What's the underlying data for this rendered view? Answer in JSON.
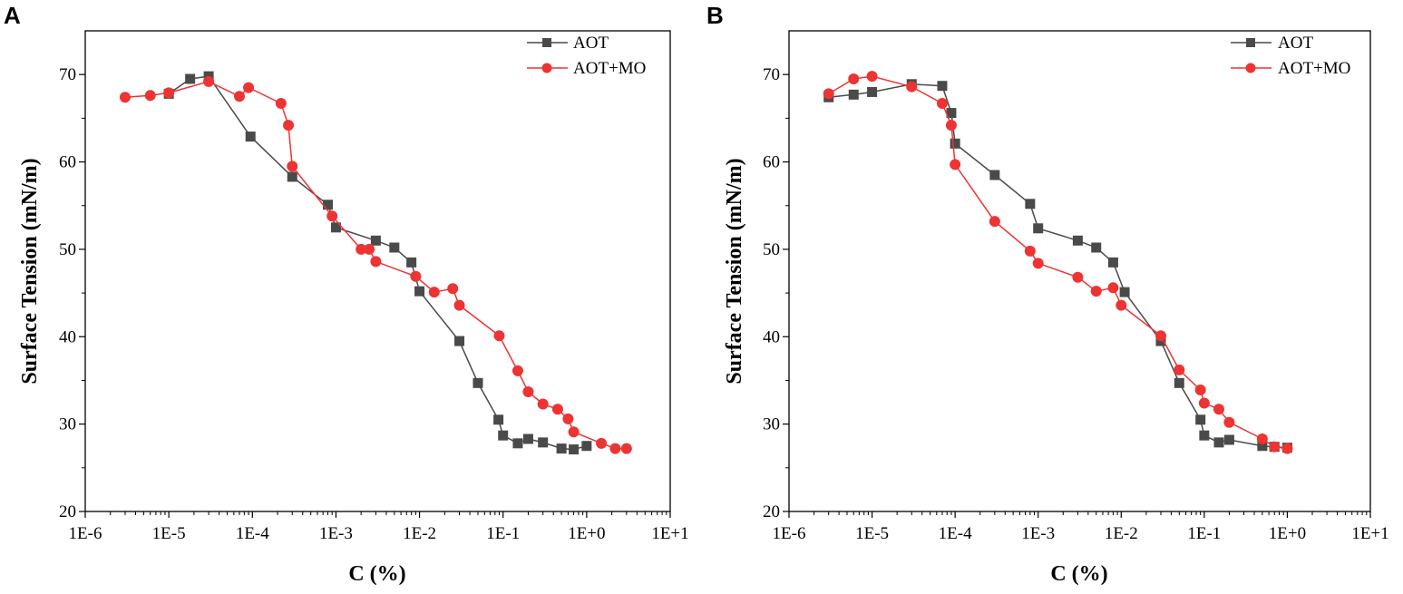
{
  "colors": {
    "aot": "#4a4a4a",
    "aot_mo": "#ee3333",
    "axis": "#000000"
  },
  "chart_data": [
    {
      "panel": "A",
      "type": "line",
      "xscale": "log",
      "xlabel": "C (%)",
      "ylabel": "Surface Tension (mN/m)",
      "xlim": [
        1e-06,
        10
      ],
      "ylim": [
        20,
        75
      ],
      "x_ticks": [
        1e-06,
        1e-05,
        0.0001,
        0.001,
        0.01,
        0.1,
        1,
        10
      ],
      "x_tick_labels": [
        "1E-6",
        "1E-5",
        "1E-4",
        "1E-3",
        "1E-2",
        "1E-1",
        "1E+0",
        "1E+1"
      ],
      "y_ticks": [
        20,
        30,
        40,
        50,
        60,
        70
      ],
      "y_tick_labels": [
        "20",
        "30",
        "40",
        "50",
        "60",
        "70"
      ],
      "legend_position": "top-right",
      "series": [
        {
          "name": "AOT",
          "marker": "square",
          "color_key": "aot",
          "points": [
            [
              1e-05,
              67.8
            ],
            [
              1.8e-05,
              69.5
            ],
            [
              3e-05,
              69.8
            ],
            [
              9.5e-05,
              62.9
            ],
            [
              0.0003,
              58.3
            ],
            [
              0.0008,
              55.1
            ],
            [
              0.001,
              52.5
            ],
            [
              0.003,
              51.0
            ],
            [
              0.005,
              50.2
            ],
            [
              0.008,
              48.5
            ],
            [
              0.01,
              45.2
            ],
            [
              0.03,
              39.5
            ],
            [
              0.05,
              34.7
            ],
            [
              0.088,
              30.5
            ],
            [
              0.1,
              28.7
            ],
            [
              0.15,
              27.8
            ],
            [
              0.2,
              28.3
            ],
            [
              0.3,
              27.9
            ],
            [
              0.5,
              27.2
            ],
            [
              0.7,
              27.1
            ],
            [
              1.0,
              27.5
            ]
          ]
        },
        {
          "name": "AOT+MO",
          "marker": "circle",
          "color_key": "aot_mo",
          "points": [
            [
              3e-06,
              67.4
            ],
            [
              6e-06,
              67.6
            ],
            [
              1e-05,
              67.9
            ],
            [
              3e-05,
              69.2
            ],
            [
              7e-05,
              67.5
            ],
            [
              9e-05,
              68.5
            ],
            [
              0.00022,
              66.7
            ],
            [
              0.00027,
              64.2
            ],
            [
              0.0003,
              59.5
            ],
            [
              0.0009,
              53.8
            ],
            [
              0.002,
              50.0
            ],
            [
              0.0025,
              50.0
            ],
            [
              0.003,
              48.6
            ],
            [
              0.009,
              46.9
            ],
            [
              0.015,
              45.1
            ],
            [
              0.025,
              45.5
            ],
            [
              0.03,
              43.6
            ],
            [
              0.09,
              40.1
            ],
            [
              0.15,
              36.1
            ],
            [
              0.2,
              33.7
            ],
            [
              0.3,
              32.3
            ],
            [
              0.45,
              31.7
            ],
            [
              0.6,
              30.6
            ],
            [
              0.7,
              29.1
            ],
            [
              1.5,
              27.8
            ],
            [
              2.2,
              27.2
            ],
            [
              3.0,
              27.2
            ]
          ]
        }
      ]
    },
    {
      "panel": "B",
      "type": "line",
      "xscale": "log",
      "xlabel": "C (%)",
      "ylabel": "Surface Tension (mN/m)",
      "xlim": [
        1e-06,
        10
      ],
      "ylim": [
        20,
        75
      ],
      "x_ticks": [
        1e-06,
        1e-05,
        0.0001,
        0.001,
        0.01,
        0.1,
        1,
        10
      ],
      "x_tick_labels": [
        "1E-6",
        "1E-5",
        "1E-4",
        "1E-3",
        "1E-2",
        "1E-1",
        "1E+0",
        "1E+1"
      ],
      "y_ticks": [
        20,
        30,
        40,
        50,
        60,
        70
      ],
      "y_tick_labels": [
        "20",
        "30",
        "40",
        "50",
        "60",
        "70"
      ],
      "legend_position": "top-right",
      "series": [
        {
          "name": "AOT",
          "marker": "square",
          "color_key": "aot",
          "points": [
            [
              3e-06,
              67.4
            ],
            [
              6e-06,
              67.7
            ],
            [
              1e-05,
              68.0
            ],
            [
              3e-05,
              68.9
            ],
            [
              7e-05,
              68.7
            ],
            [
              9e-05,
              65.6
            ],
            [
              0.0001,
              62.1
            ],
            [
              0.0003,
              58.5
            ],
            [
              0.0008,
              55.2
            ],
            [
              0.001,
              52.4
            ],
            [
              0.003,
              51.0
            ],
            [
              0.005,
              50.2
            ],
            [
              0.008,
              48.5
            ],
            [
              0.011,
              45.1
            ],
            [
              0.03,
              39.5
            ],
            [
              0.05,
              34.7
            ],
            [
              0.09,
              30.5
            ],
            [
              0.1,
              28.7
            ],
            [
              0.15,
              27.9
            ],
            [
              0.2,
              28.2
            ],
            [
              0.5,
              27.5
            ],
            [
              0.7,
              27.4
            ],
            [
              1.0,
              27.3
            ]
          ]
        },
        {
          "name": "AOT+MO",
          "marker": "circle",
          "color_key": "aot_mo",
          "points": [
            [
              3e-06,
              67.8
            ],
            [
              6e-06,
              69.5
            ],
            [
              1e-05,
              69.8
            ],
            [
              3e-05,
              68.6
            ],
            [
              7e-05,
              66.7
            ],
            [
              9e-05,
              64.2
            ],
            [
              0.0001,
              59.7
            ],
            [
              0.0003,
              53.2
            ],
            [
              0.0008,
              49.8
            ],
            [
              0.001,
              48.4
            ],
            [
              0.003,
              46.8
            ],
            [
              0.005,
              45.2
            ],
            [
              0.008,
              45.6
            ],
            [
              0.01,
              43.6
            ],
            [
              0.03,
              40.1
            ],
            [
              0.05,
              36.2
            ],
            [
              0.09,
              33.9
            ],
            [
              0.1,
              32.4
            ],
            [
              0.15,
              31.7
            ],
            [
              0.2,
              30.2
            ],
            [
              0.5,
              28.3
            ],
            [
              0.7,
              27.4
            ],
            [
              1.0,
              27.2
            ]
          ]
        }
      ]
    }
  ]
}
